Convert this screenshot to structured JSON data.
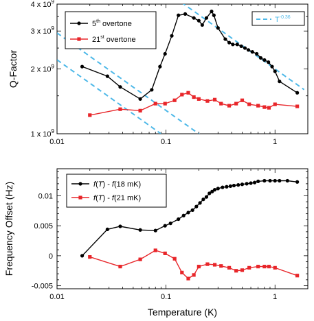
{
  "chart_data": [
    {
      "type": "line",
      "ylabel": "Q-Factor",
      "xscale": "log",
      "yscale": "log",
      "xlim": [
        0.01,
        2.0
      ],
      "ylim": [
        1000000000.0,
        4000000000.0
      ],
      "x_ticks": [
        {
          "value": 0.01,
          "label": "0.01"
        },
        {
          "value": 0.1,
          "label": "0.1"
        },
        {
          "value": 1,
          "label": "1"
        }
      ],
      "y_ticks": [
        {
          "value": 1000000000.0,
          "base": "1 x 10",
          "exp": "9"
        },
        {
          "value": 2000000000.0,
          "base": "2 x 10",
          "exp": "9"
        },
        {
          "value": 3000000000.0,
          "base": "3 x 10",
          "exp": "9"
        },
        {
          "value": 4000000000.0,
          "base": "4 x 10",
          "exp": "9"
        }
      ],
      "legend_position": "top-left",
      "legend": [
        {
          "pre": "5",
          "sup": "th",
          "post": " overtone",
          "series": 0
        },
        {
          "pre": "21",
          "sup": "st",
          "post": " overtone",
          "series": 1
        }
      ],
      "series": [
        {
          "color": "#000000",
          "marker": "circle",
          "x": [
            0.017,
            0.029,
            0.038,
            0.058,
            0.074,
            0.088,
            0.098,
            0.113,
            0.13,
            0.15,
            0.18,
            0.2,
            0.215,
            0.235,
            0.262,
            0.275,
            0.3,
            0.35,
            0.38,
            0.41,
            0.45,
            0.49,
            0.53,
            0.57,
            0.62,
            0.68,
            0.74,
            0.8,
            0.87,
            0.94,
            1.0,
            1.1,
            1.6
          ],
          "y": [
            2050000000.0,
            1850000000.0,
            1650000000.0,
            1450000000.0,
            1600000000.0,
            2050000000.0,
            2350000000.0,
            2850000000.0,
            3550000000.0,
            3600000000.0,
            3450000000.0,
            3350000000.0,
            3200000000.0,
            3450000000.0,
            3700000000.0,
            3550000000.0,
            3100000000.0,
            2750000000.0,
            2650000000.0,
            2600000000.0,
            2600000000.0,
            2550000000.0,
            2500000000.0,
            2450000000.0,
            2400000000.0,
            2350000000.0,
            2250000000.0,
            2200000000.0,
            2150000000.0,
            2050000000.0,
            1950000000.0,
            1750000000.0,
            1550000000.0
          ]
        },
        {
          "color": "#e8262a",
          "marker": "square",
          "x": [
            0.02,
            0.038,
            0.058,
            0.08,
            0.098,
            0.12,
            0.14,
            0.16,
            0.18,
            0.2,
            0.24,
            0.28,
            0.32,
            0.38,
            0.44,
            0.5,
            0.58,
            0.7,
            0.8,
            0.88,
            1.0,
            1.6
          ],
          "y": [
            1220000000.0,
            1300000000.0,
            1280000000.0,
            1380000000.0,
            1380000000.0,
            1430000000.0,
            1520000000.0,
            1550000000.0,
            1480000000.0,
            1450000000.0,
            1420000000.0,
            1440000000.0,
            1380000000.0,
            1350000000.0,
            1380000000.0,
            1430000000.0,
            1370000000.0,
            1350000000.0,
            1330000000.0,
            1320000000.0,
            1370000000.0,
            1340000000.0
          ]
        }
      ],
      "reference_lines": {
        "label_base": "T",
        "label_exp": "-0.36",
        "exponent": -0.36,
        "color": "#4db8e8",
        "lines": [
          {
            "x_start": 0.01,
            "x_end": 0.45,
            "C": 560000000.0
          },
          {
            "x_start": 0.01,
            "x_end": 0.3,
            "C": 420000000.0
          },
          {
            "x_start": 0.12,
            "x_end": 1.85,
            "C": 2000000000.0
          }
        ]
      }
    },
    {
      "type": "line",
      "xlabel": "Temperature (K)",
      "ylabel": "Frequency Offset (Hz)",
      "xscale": "log",
      "xlim": [
        0.01,
        2.0
      ],
      "ylim": [
        -0.0055,
        0.0145
      ],
      "x_ticks": [
        {
          "value": 0.01,
          "label": "0.01"
        },
        {
          "value": 0.1,
          "label": "0.1"
        },
        {
          "value": 1,
          "label": "1"
        }
      ],
      "y_ticks": [
        {
          "value": -0.005,
          "label": "-0.005"
        },
        {
          "value": 0,
          "label": "0"
        },
        {
          "value": 0.005,
          "label": "0.005"
        },
        {
          "value": 0.01,
          "label": "0.01"
        }
      ],
      "legend_position": "top-left",
      "legend": [
        {
          "f": "f",
          "paren": "(",
          "T": "T",
          "rest": ") - ",
          "f2": "f",
          "tail": "(18 mK)",
          "series": 0
        },
        {
          "f": "f",
          "paren": "(",
          "T": "T",
          "rest": ") - ",
          "f2": "f",
          "tail": "(21 mK)",
          "series": 1
        }
      ],
      "series": [
        {
          "color": "#000000",
          "marker": "circle",
          "x": [
            0.017,
            0.029,
            0.038,
            0.058,
            0.08,
            0.098,
            0.11,
            0.13,
            0.145,
            0.16,
            0.175,
            0.19,
            0.205,
            0.22,
            0.235,
            0.25,
            0.265,
            0.28,
            0.3,
            0.33,
            0.36,
            0.39,
            0.42,
            0.46,
            0.5,
            0.55,
            0.6,
            0.65,
            0.7,
            0.8,
            0.9,
            1.0,
            1.1,
            1.3,
            1.6
          ],
          "y": [
            0.0,
            0.0044,
            0.0049,
            0.0043,
            0.0042,
            0.005,
            0.0054,
            0.0061,
            0.0067,
            0.0072,
            0.0076,
            0.0082,
            0.0088,
            0.0094,
            0.0098,
            0.0104,
            0.0107,
            0.011,
            0.0112,
            0.0114,
            0.0115,
            0.0116,
            0.0117,
            0.0118,
            0.0119,
            0.012,
            0.0121,
            0.0122,
            0.0124,
            0.0125,
            0.0125,
            0.0125,
            0.0125,
            0.0125,
            0.0123
          ]
        },
        {
          "color": "#e8262a",
          "marker": "square",
          "x": [
            0.02,
            0.038,
            0.058,
            0.08,
            0.098,
            0.12,
            0.14,
            0.16,
            0.18,
            0.2,
            0.24,
            0.28,
            0.32,
            0.38,
            0.44,
            0.5,
            0.58,
            0.7,
            0.8,
            0.88,
            1.0,
            1.6
          ],
          "y": [
            -0.0002,
            -0.0018,
            -0.0006,
            0.0009,
            0.0004,
            -0.0005,
            -0.0028,
            -0.0038,
            -0.0032,
            -0.0018,
            -0.0014,
            -0.0015,
            -0.0017,
            -0.002,
            -0.0025,
            -0.0024,
            -0.002,
            -0.0018,
            -0.0018,
            -0.0018,
            -0.002,
            -0.0033
          ]
        }
      ]
    }
  ]
}
